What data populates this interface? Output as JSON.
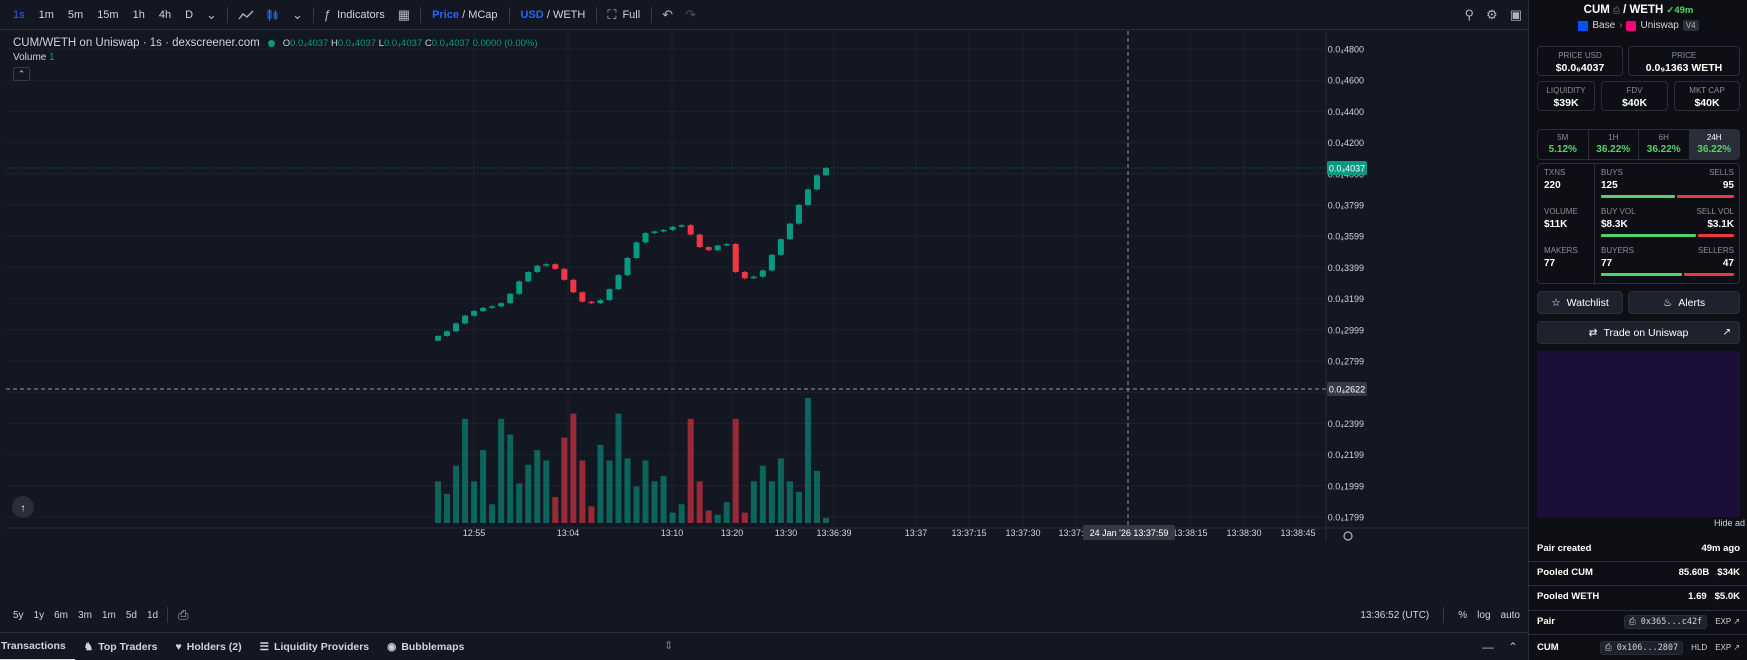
{
  "toolbar": {
    "intervals": [
      "1s",
      "1m",
      "5m",
      "15m",
      "1h",
      "4h",
      "D"
    ],
    "active_interval": "1s",
    "indicators_label": "Indicators",
    "price_label": "Price",
    "mcap_label": "MCap",
    "usd_label": "USD",
    "weth_label": "WETH",
    "full_label": "Full"
  },
  "legend": {
    "title": "CUM/WETH on Uniswap · 1s · dexscreener.com",
    "o_label": "O",
    "o_value": "0.0₄4037",
    "h_label": "H",
    "h_value": "0.0₄4037",
    "l_label": "L",
    "l_value": "0.0₄4037",
    "c_label": "C",
    "c_value": "0.0₄4037",
    "change": "0.0000 (0.00%)",
    "volume_label": "Volume",
    "volume_value": "1"
  },
  "price_axis": {
    "ticks": [
      "0.0₄4800",
      "0.0₄4600",
      "0.0₄4400",
      "0.0₄4200",
      "0.0₄4000",
      "0.0₄3799",
      "0.0₄3599",
      "0.0₄3399",
      "0.0₄3199",
      "0.0₄2999",
      "0.0₄2799",
      "0.0₄2622",
      "0.0₄2399",
      "0.0₄2199",
      "0.0₄1999",
      "0.0₄1799"
    ],
    "last_price": "0.0₄4037",
    "crosshair_price": "0.0₄2622"
  },
  "time_axis": {
    "ticks": [
      "12:55",
      "13:04",
      "13:10",
      "13:20",
      "13:30",
      "13:36:39",
      "13:37",
      "13:37:15",
      "13:37:30",
      "13:37:45",
      "13:38:15",
      "13:38:30",
      "13:38:45"
    ],
    "crosshair_label": "24 Jan '26   13:37:59"
  },
  "colors": {
    "up": "#089981",
    "down": "#f23645",
    "bg": "#131722",
    "accent": "#2962ff"
  },
  "chart_data": {
    "type": "candlestick",
    "price_unit": "WETH",
    "close": [
      2.96e-05,
      2.99e-05,
      3.04e-05,
      3.09e-05,
      3.12e-05,
      3.14e-05,
      3.15e-05,
      3.17e-05,
      3.23e-05,
      3.31e-05,
      3.37e-05,
      3.41e-05,
      3.42e-05,
      3.39e-05,
      3.32e-05,
      3.24e-05,
      3.18e-05,
      3.17e-05,
      3.19e-05,
      3.26e-05,
      3.35e-05,
      3.46e-05,
      3.56e-05,
      3.62e-05,
      3.63e-05,
      3.64e-05,
      3.66e-05,
      3.67e-05,
      3.61e-05,
      3.53e-05,
      3.51e-05,
      3.54e-05,
      3.55e-05,
      3.37e-05,
      3.33e-05,
      3.34e-05,
      3.38e-05,
      3.48e-05,
      3.58e-05,
      3.68e-05,
      3.8e-05,
      3.9e-05,
      3.99e-05,
      4.037e-05
    ],
    "volume": [
      40,
      28,
      55,
      100,
      40,
      70,
      18,
      100,
      85,
      38,
      56,
      70,
      60,
      25,
      82,
      105,
      60,
      16,
      75,
      60,
      105,
      62,
      35,
      60,
      40,
      45,
      10,
      18,
      100,
      40,
      12,
      8,
      20,
      100,
      10,
      40,
      55,
      40,
      62,
      40,
      30,
      120,
      50,
      5
    ]
  },
  "bottom_bar": {
    "ranges": [
      "5y",
      "1y",
      "6m",
      "3m",
      "1m",
      "5d",
      "1d"
    ],
    "clock": "13:36:52 (UTC)",
    "pct_label": "%",
    "log_label": "log",
    "auto_label": "auto"
  },
  "tabs": [
    {
      "label": "Transactions",
      "active": true
    },
    {
      "label": "Top Traders",
      "active": false
    },
    {
      "label": "Holders (2)",
      "active": false
    },
    {
      "label": "Liquidity Providers",
      "active": false
    },
    {
      "label": "Bubblemaps",
      "active": false
    }
  ],
  "panel": {
    "base_token": "CUM",
    "quote_token": "WETH",
    "age": "49m",
    "chain": "Base",
    "dex": "Uniswap",
    "version": "V4",
    "price_usd_label": "PRICE USD",
    "price_usd": "$0.0₆4037",
    "price_label": "PRICE",
    "price_weth": "0.0₉1363 WETH",
    "liquidity_label": "LIQUIDITY",
    "liquidity": "$39K",
    "fdv_label": "FDV",
    "fdv": "$40K",
    "mktcap_label": "MKT CAP",
    "mktcap": "$40K",
    "timeframes": [
      {
        "label": "5M",
        "change": "5.12%"
      },
      {
        "label": "1H",
        "change": "36.22%"
      },
      {
        "label": "6H",
        "change": "36.22%"
      },
      {
        "label": "24H",
        "change": "36.22%"
      }
    ],
    "txns_label": "TXNS",
    "txns": "220",
    "buys_label": "BUYS",
    "buys": "125",
    "sells_label": "SELLS",
    "sells": "95",
    "volume_label": "VOLUME",
    "volume": "$11K",
    "buyvol_label": "BUY VOL",
    "buyvol": "$8.3K",
    "sellvol_label": "SELL VOL",
    "sellvol": "$3.1K",
    "makers_label": "MAKERS",
    "makers": "77",
    "buyers_label": "BUYERS",
    "buyers": "77",
    "sellers_label": "SELLERS",
    "sellers": "47",
    "watchlist_label": "Watchlist",
    "alerts_label": "Alerts",
    "trade_label": "Trade on Uniswap",
    "hide_ad": "Hide ad",
    "pair_created_label": "Pair created",
    "pair_created": "49m ago",
    "pooled_base_label": "Pooled CUM",
    "pooled_base": "85.60B",
    "pooled_base_usd": "$34K",
    "pooled_quote_label": "Pooled WETH",
    "pooled_quote": "1.69",
    "pooled_quote_usd": "$5.0K",
    "pair_label": "Pair",
    "pair_addr": "0x365...c42f",
    "exp": "EXP",
    "token_label": "CUM",
    "token_addr": "0x106...2807",
    "hld": "HLD"
  }
}
